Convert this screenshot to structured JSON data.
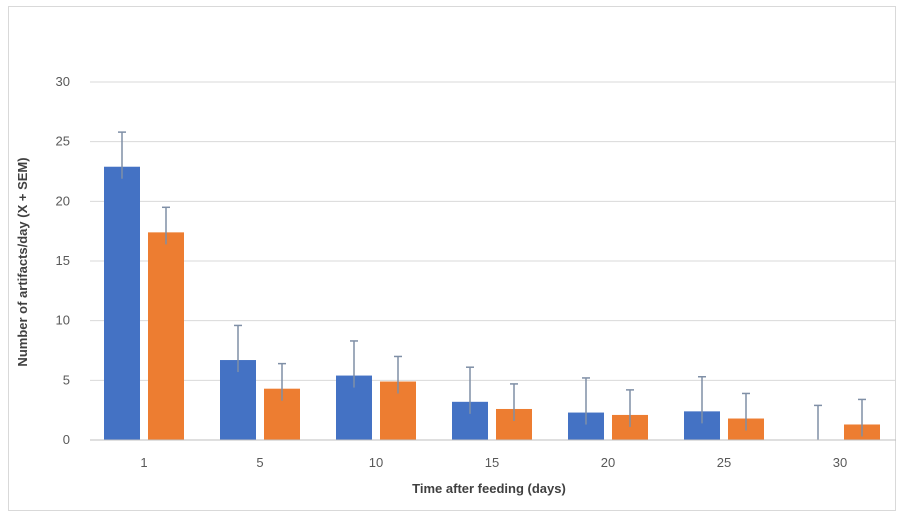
{
  "chart_data": {
    "type": "bar",
    "categories": [
      "1",
      "5",
      "10",
      "15",
      "20",
      "25",
      "30"
    ],
    "series": [
      {
        "color": "#4472C4",
        "values": [
          22.9,
          6.7,
          5.4,
          3.2,
          2.3,
          2.4,
          0
        ],
        "error": [
          2.9,
          2.9,
          2.9,
          2.9,
          2.9,
          2.9,
          2.9
        ]
      },
      {
        "color": "#ED7D31",
        "values": [
          17.4,
          4.3,
          4.9,
          2.6,
          2.1,
          1.8,
          1.3
        ],
        "error": [
          2.1,
          2.1,
          2.1,
          2.1,
          2.1,
          2.1,
          2.1
        ]
      }
    ],
    "xlabel": "Time after feeding (days)",
    "ylabel": "Number of artifacts/day (X + SEM)",
    "ylim": [
      0,
      30
    ],
    "yticks": [
      0,
      5,
      10,
      15,
      20,
      25,
      30
    ],
    "grid": true,
    "error_bars": "upper",
    "error_bar_color": "#7f8fa6"
  }
}
